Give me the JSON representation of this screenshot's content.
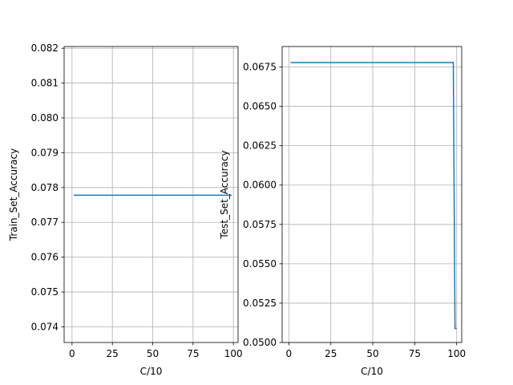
{
  "chart_data": [
    {
      "type": "line",
      "title": "",
      "xlabel": "C/10",
      "ylabel": "Train_Set_Accuracy",
      "xlim": [
        -4.9,
        102.9
      ],
      "ylim": [
        0.07355,
        0.08205
      ],
      "xticks": [
        0,
        25,
        50,
        75,
        100
      ],
      "yticks": [
        0.074,
        0.075,
        0.076,
        0.077,
        0.078,
        0.079,
        0.08,
        0.081,
        0.082
      ],
      "ytick_labels": [
        "0.074",
        "0.075",
        "0.076",
        "0.077",
        "0.078",
        "0.079",
        "0.080",
        "0.081",
        "0.082"
      ],
      "grid": true,
      "color": "#1f77b4",
      "series": [
        {
          "x": [
            1,
            99
          ],
          "y": [
            0.07778,
            0.07778
          ]
        }
      ]
    },
    {
      "type": "line",
      "title": "",
      "xlabel": "C/10",
      "ylabel": "Test_Set_Accuracy",
      "xlim": [
        -4.0,
        103.0
      ],
      "ylim": [
        0.05,
        0.0688
      ],
      "xticks": [
        0,
        25,
        50,
        75,
        100
      ],
      "yticks": [
        0.05,
        0.0525,
        0.055,
        0.0575,
        0.06,
        0.0625,
        0.065,
        0.0675
      ],
      "ytick_labels": [
        "0.0500",
        "0.0525",
        "0.0550",
        "0.0575",
        "0.0600",
        "0.0625",
        "0.0650",
        "0.0675"
      ],
      "grid": true,
      "color": "#1f77b4",
      "series": [
        {
          "x": [
            1,
            98,
            99,
            100
          ],
          "y": [
            0.06778,
            0.06778,
            0.05089,
            0.05089
          ]
        }
      ]
    }
  ]
}
